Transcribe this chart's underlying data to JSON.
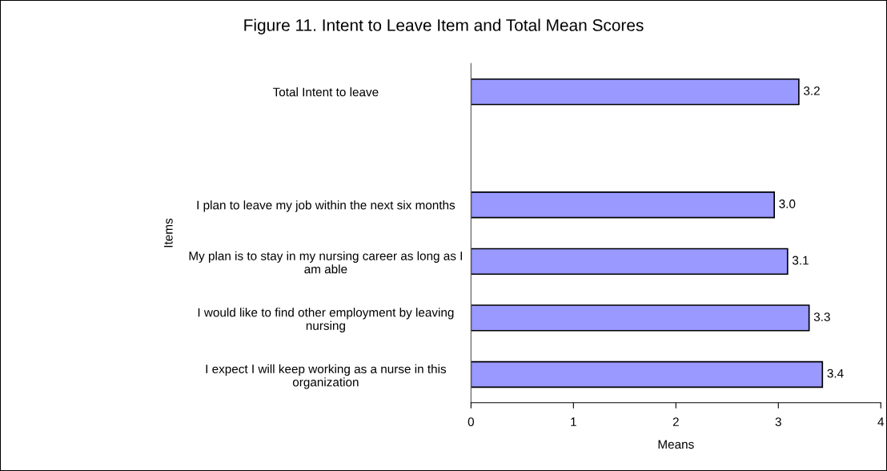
{
  "chart_data": {
    "type": "bar",
    "orientation": "horizontal",
    "title": "Figure 11. Intent to Leave Item and Total Mean Scores",
    "xlabel": "Means",
    "ylabel": "Items",
    "categories": [
      "Total Intent to leave",
      null,
      "I plan to leave my job within the next six months",
      "My plan is to stay in my nursing career as long as I\nam able",
      "I would like to find other employment by leaving\nnursing",
      "I expect I will keep working as a nurse in this\norganization"
    ],
    "values": [
      3.2,
      null,
      2.96,
      3.09,
      3.3,
      3.43
    ],
    "value_labels": [
      "3.2",
      null,
      "3.0",
      "3.1",
      "3.3",
      "3.4"
    ],
    "color": "#9999ff",
    "xlim": [
      0,
      4
    ],
    "xticks": [
      0,
      1,
      2,
      3,
      4
    ],
    "grid": false,
    "legend": false
  }
}
